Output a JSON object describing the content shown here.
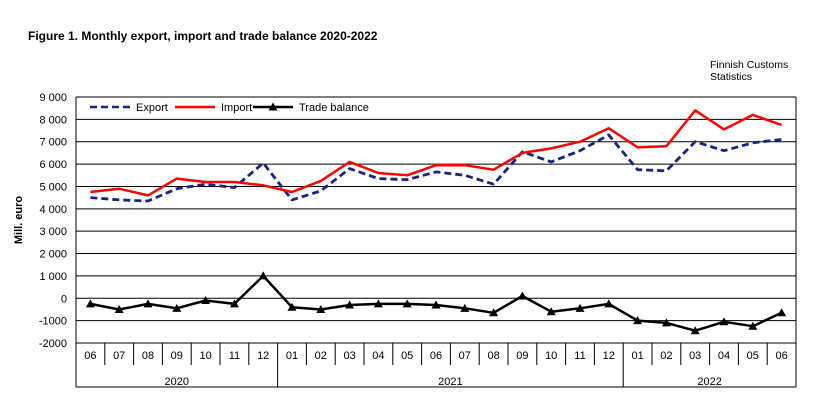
{
  "title": "Figure  1. Monthly  export, import and trade balance 2020-2022",
  "source": {
    "line1": "Finnish Customs",
    "line2": "Statistics"
  },
  "colors": {
    "export": "#1a237e",
    "import": "#ff0000",
    "balance": "#000000"
  },
  "chart_data": {
    "type": "line",
    "title": "Figure  1. Monthly  export, import and trade balance 2020-2022",
    "xlabel": "",
    "ylabel": "Mill. euro",
    "ylim": [
      -2000,
      9000
    ],
    "yticks": [
      9000,
      8000,
      7000,
      6000,
      5000,
      4000,
      3000,
      2000,
      1000,
      0,
      -1000,
      -2000
    ],
    "ytick_labels": [
      "9 000",
      "8 000",
      "7 000",
      "6 000",
      "5 000",
      "4 000",
      "3 000",
      "2 000",
      "1 000",
      "0",
      "-1000",
      "-2000"
    ],
    "categories": [
      "06",
      "07",
      "08",
      "09",
      "10",
      "11",
      "12",
      "01",
      "02",
      "03",
      "04",
      "05",
      "06",
      "07",
      "08",
      "09",
      "10",
      "11",
      "12",
      "01",
      "02",
      "03",
      "04",
      "05",
      "06"
    ],
    "years": [
      {
        "label": "2020",
        "start": 0,
        "end": 6
      },
      {
        "label": "2021",
        "start": 7,
        "end": 18
      },
      {
        "label": "2022",
        "start": 19,
        "end": 24
      }
    ],
    "legend_position": "top-left",
    "grid": true,
    "series": [
      {
        "name": "Export",
        "style": "dashed",
        "values": [
          4500,
          4400,
          4350,
          4900,
          5100,
          4950,
          6050,
          4400,
          4800,
          5800,
          5350,
          5300,
          5650,
          5500,
          5100,
          6550,
          6100,
          6600,
          7300,
          5750,
          5700,
          7000,
          6600,
          6950,
          7100
        ]
      },
      {
        "name": "Import",
        "style": "solid",
        "values": [
          4750,
          4900,
          4600,
          5350,
          5200,
          5200,
          5050,
          4750,
          5250,
          6100,
          5600,
          5500,
          5950,
          5950,
          5750,
          6500,
          6700,
          7000,
          7600,
          6750,
          6800,
          8400,
          7550,
          8200,
          7750
        ]
      },
      {
        "name": "Trade balance",
        "style": "marker",
        "values": [
          -250,
          -500,
          -250,
          -450,
          -100,
          -250,
          1000,
          -400,
          -500,
          -300,
          -250,
          -250,
          -300,
          -450,
          -650,
          100,
          -600,
          -450,
          -250,
          -1000,
          -1100,
          -1450,
          -1050,
          -1250,
          -650
        ]
      }
    ]
  }
}
